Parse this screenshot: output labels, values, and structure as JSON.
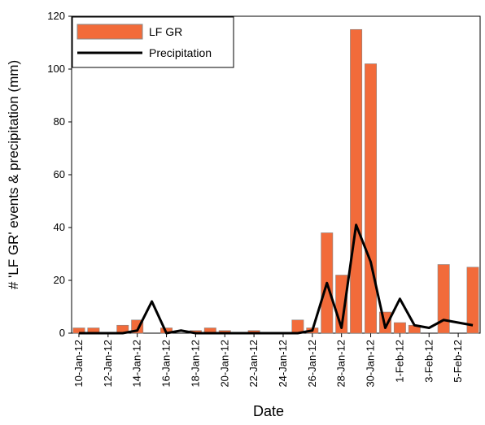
{
  "chart_data": {
    "type": "bar-line",
    "x_label": "Date",
    "y_label": "# 'LF GR' events & precipitation (mm)",
    "categories": [
      "10-Jan-12",
      null,
      "12-Jan-12",
      null,
      "14-Jan-12",
      null,
      "16-Jan-12",
      null,
      "18-Jan-12",
      null,
      "20-Jan-12",
      null,
      "22-Jan-12",
      null,
      "24-Jan-12",
      null,
      "26-Jan-12",
      null,
      "28-Jan-12",
      null,
      "30-Jan-12",
      null,
      "1-Feb-12",
      null,
      "3-Feb-12",
      null,
      "5-Feb-12",
      null
    ],
    "series": [
      {
        "name": "LF GR",
        "kind": "bar",
        "color": "#f26b3a",
        "values": [
          2,
          2,
          0,
          3,
          5,
          0,
          2,
          0,
          1,
          2,
          1,
          0,
          1,
          0,
          0,
          5,
          2,
          38,
          22,
          115,
          102,
          8,
          4,
          3,
          0,
          26,
          0,
          25
        ]
      },
      {
        "name": "Precipitation",
        "kind": "line",
        "color": "#000000",
        "values": [
          0,
          0,
          0,
          0,
          1,
          12,
          0,
          1,
          0,
          0,
          0,
          0,
          0,
          0,
          0,
          0,
          1,
          19,
          2,
          41,
          27,
          2,
          13,
          3,
          2,
          5,
          4,
          3
        ]
      }
    ],
    "ylim": [
      0,
      120
    ],
    "yticks": [
      0,
      20,
      40,
      60,
      80,
      100,
      120
    ],
    "legend": "top-left"
  }
}
